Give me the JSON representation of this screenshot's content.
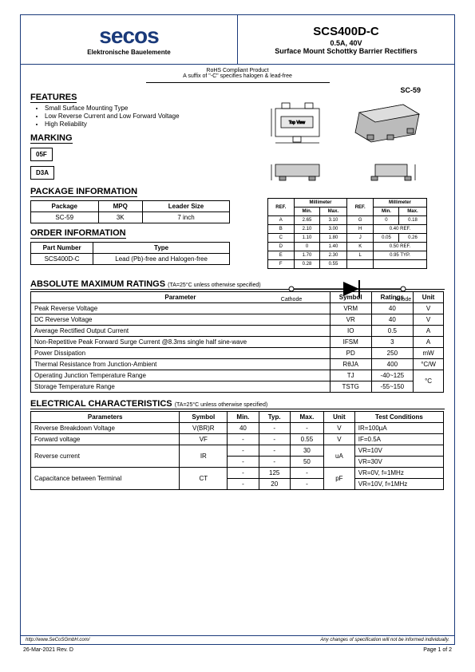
{
  "logo": {
    "text": "secos",
    "subtitle": "Elektronische Bauelemente"
  },
  "header": {
    "title": "SCS400D-C",
    "line1": "0.5A, 40V",
    "line2": "Surface Mount Schottky Barrier Rectifiers"
  },
  "compliance": {
    "line1": "RoHS Compliant Product",
    "line2": "A suffix of \"-C\" specifies halogen & lead-free"
  },
  "features": {
    "title": "FEATURES",
    "items": [
      "Small Surface Mounting Type",
      "Low Reverse Current and Low Forward Voltage",
      "High Reliability"
    ]
  },
  "marking": {
    "title": "MARKING",
    "codes": [
      "05F",
      "D3A"
    ]
  },
  "pkg_label": "SC-59",
  "package_info": {
    "title": "PACKAGE INFORMATION",
    "headers": [
      "Package",
      "MPQ",
      "Leader Size"
    ],
    "rows": [
      [
        "SC-59",
        "3K",
        "7 inch"
      ]
    ]
  },
  "order_info": {
    "title": "ORDER INFORMATION",
    "headers": [
      "Part Number",
      "Type"
    ],
    "rows": [
      [
        "SCS400D-C",
        "Lead (Pb)-free and Halogen-free"
      ]
    ]
  },
  "dims": {
    "header_ref": "REF.",
    "header_mm": "Millimeter",
    "header_min": "Min.",
    "header_max": "Max.",
    "rows": [
      [
        "A",
        "2.65",
        "3.10",
        "G",
        "0",
        "0.18"
      ],
      [
        "B",
        "2.10",
        "3.00",
        "H",
        "0.40 REF.",
        ""
      ],
      [
        "C",
        "1.10",
        "1.80",
        "J",
        "0.05",
        "0.26"
      ],
      [
        "D",
        "0",
        "1.40",
        "K",
        "0.50 REF.",
        ""
      ],
      [
        "E",
        "1.70",
        "2.30",
        "L",
        "0.95 TYP.",
        ""
      ],
      [
        "F",
        "0.28",
        "0.55",
        "",
        "",
        ""
      ]
    ]
  },
  "diode": {
    "cathode": "Cathode",
    "anode": "Anode"
  },
  "abs_max": {
    "title": "ABSOLUTE MAXIMUM RATINGS",
    "cond": "(TA=25°C unless otherwise specified)",
    "headers": [
      "Parameter",
      "Symbol",
      "Ratings",
      "Unit"
    ],
    "rows": [
      [
        "Peak Reverse Voltage",
        "VRM",
        "40",
        "V"
      ],
      [
        "DC Reverse Voltage",
        "VR",
        "40",
        "V"
      ],
      [
        "Average Rectified Output Current",
        "IO",
        "0.5",
        "A"
      ],
      [
        "Non-Repetitive Peak Forward Surge Current @8.3ms single half sine-wave",
        "IFSM",
        "3",
        "A"
      ],
      [
        "Power Dissipation",
        "PD",
        "250",
        "mW"
      ],
      [
        "Thermal Resistance from Junction-Ambient",
        "RθJA",
        "400",
        "°C/W"
      ],
      [
        "Operating Junction Temperature Range",
        "TJ",
        "-40~125",
        "°C"
      ],
      [
        "Storage Temperature Range",
        "TSTG",
        "-55~150",
        "°C"
      ]
    ],
    "unit_merge": {
      "start": 6,
      "span": 2,
      "value": "°C"
    }
  },
  "elec": {
    "title": "ELECTRICAL CHARACTERISTICS",
    "cond": "(TA=25°C unless otherwise specified)",
    "headers": [
      "Parameters",
      "Symbol",
      "Min.",
      "Typ.",
      "Max.",
      "Unit",
      "Test Conditions"
    ],
    "rows_raw": [
      {
        "p": "Reverse Breakdown Voltage",
        "s": "V(BR)R",
        "min": "40",
        "typ": "-",
        "max": "-",
        "u": "V",
        "tc": "IR=100µA"
      },
      {
        "p": "Forward voltage",
        "s": "VF",
        "min": "-",
        "typ": "-",
        "max": "0.55",
        "u": "V",
        "tc": "IF=0.5A"
      },
      {
        "p": "Reverse current",
        "s": "IR",
        "min": "-",
        "typ": "-",
        "max": "30",
        "u": "uA",
        "tc": "VR=10V",
        "rs": 2
      },
      {
        "min": "-",
        "typ": "-",
        "max": "50",
        "tc": "VR=30V"
      },
      {
        "p": "Capacitance between Terminal",
        "s": "CT",
        "min": "-",
        "typ": "125",
        "max": "-",
        "u": "pF",
        "tc": "VR=0V, f=1MHz",
        "rs": 2
      },
      {
        "min": "-",
        "typ": "20",
        "max": "-",
        "tc": "VR=10V, f=1MHz"
      }
    ]
  },
  "footer": {
    "left": "http://www.SeCoSGmbH.com/",
    "right": "Any changes of specification will not be informed individually."
  },
  "page_footer": {
    "left": "26-Mar-2021 Rev. D",
    "right": "Page 1 of 2"
  },
  "colors": {
    "border": "#1a3a7a"
  }
}
